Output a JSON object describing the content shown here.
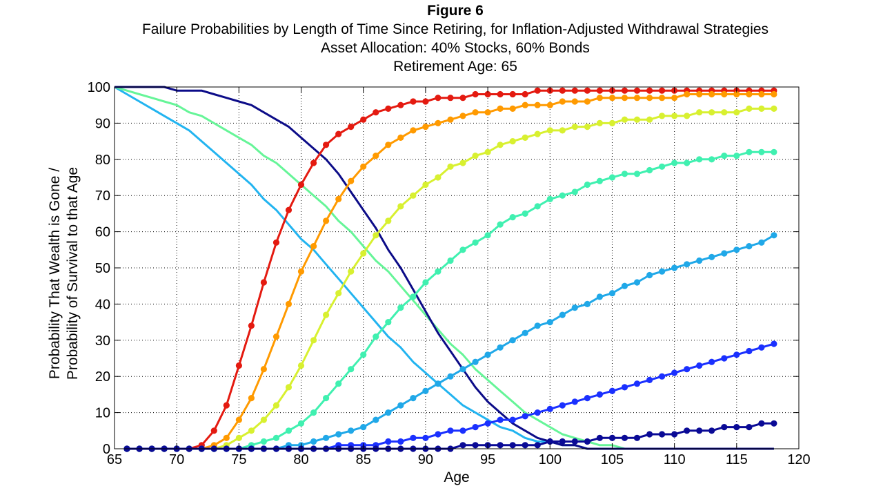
{
  "titles": {
    "figure": "Figure 6",
    "title": "Failure Probabilities by Length of Time Since Retiring, for Inflation-Adjusted Withdrawal Strategies",
    "subtitle1": "Asset Allocation: 40% Stocks, 60% Bonds",
    "subtitle2": "Retirement Age: 65"
  },
  "chart_data": {
    "type": "line",
    "xlabel": "Age",
    "ylabel_line1": "Probability That Wealth is Gone /",
    "ylabel_line2": "Probability of Survival to that Age",
    "xlim": [
      65,
      120
    ],
    "ylim": [
      0,
      100
    ],
    "xticks": [
      65,
      70,
      75,
      80,
      85,
      90,
      95,
      100,
      105,
      110,
      115,
      120
    ],
    "yticks": [
      0,
      10,
      20,
      30,
      40,
      50,
      60,
      70,
      80,
      90,
      100
    ],
    "grid": true,
    "x_start": 66,
    "x_end": 118,
    "failure_series": [
      {
        "color": "#e41a10",
        "values": [
          0,
          0,
          0,
          0,
          0,
          0,
          1,
          5,
          12,
          23,
          34,
          46,
          57,
          66,
          73,
          79,
          84,
          87,
          89,
          91,
          93,
          94,
          95,
          96,
          96,
          97,
          97,
          97,
          98,
          98,
          98,
          98,
          98,
          99,
          99,
          99,
          99,
          99,
          99,
          99,
          99,
          99,
          99,
          99,
          99,
          99,
          99,
          99,
          99,
          99,
          99,
          99,
          99
        ]
      },
      {
        "color": "#ff9a00",
        "values": [
          0,
          0,
          0,
          0,
          0,
          0,
          0,
          1,
          3,
          8,
          14,
          22,
          31,
          40,
          49,
          56,
          63,
          69,
          74,
          78,
          81,
          84,
          86,
          88,
          89,
          90,
          91,
          92,
          93,
          93,
          94,
          94,
          95,
          95,
          95,
          96,
          96,
          96,
          97,
          97,
          97,
          97,
          97,
          97,
          97,
          98,
          98,
          98,
          98,
          98,
          98,
          98,
          98
        ]
      },
      {
        "color": "#d8f030",
        "values": [
          0,
          0,
          0,
          0,
          0,
          0,
          0,
          0,
          1,
          3,
          5,
          8,
          12,
          17,
          23,
          30,
          37,
          43,
          49,
          54,
          59,
          63,
          67,
          70,
          73,
          75,
          78,
          79,
          81,
          82,
          84,
          85,
          86,
          87,
          88,
          88,
          89,
          89,
          90,
          90,
          91,
          91,
          91,
          92,
          92,
          92,
          93,
          93,
          93,
          93,
          94,
          94,
          94
        ]
      },
      {
        "color": "#40f0b0",
        "values": [
          0,
          0,
          0,
          0,
          0,
          0,
          0,
          0,
          0,
          0,
          1,
          2,
          3,
          5,
          7,
          10,
          14,
          18,
          22,
          26,
          31,
          35,
          39,
          42,
          46,
          49,
          52,
          55,
          57,
          59,
          62,
          64,
          65,
          67,
          69,
          70,
          71,
          73,
          74,
          75,
          76,
          76,
          77,
          78,
          79,
          79,
          80,
          80,
          81,
          81,
          82,
          82,
          82
        ]
      },
      {
        "color": "#20a8e8",
        "values": [
          0,
          0,
          0,
          0,
          0,
          0,
          0,
          0,
          0,
          0,
          0,
          0,
          0,
          1,
          1,
          2,
          3,
          4,
          5,
          6,
          8,
          10,
          12,
          14,
          16,
          18,
          20,
          22,
          24,
          26,
          28,
          30,
          32,
          34,
          35,
          37,
          39,
          40,
          42,
          43,
          45,
          46,
          48,
          49,
          50,
          51,
          52,
          53,
          54,
          55,
          56,
          57,
          59
        ]
      },
      {
        "color": "#1a30ff",
        "values": [
          0,
          0,
          0,
          0,
          0,
          0,
          0,
          0,
          0,
          0,
          0,
          0,
          0,
          0,
          0,
          0,
          0,
          1,
          1,
          1,
          1,
          2,
          2,
          3,
          3,
          4,
          5,
          5,
          6,
          7,
          8,
          8,
          9,
          10,
          11,
          12,
          13,
          14,
          15,
          16,
          17,
          18,
          19,
          20,
          21,
          22,
          23,
          24,
          25,
          26,
          27,
          28,
          29
        ]
      },
      {
        "color": "#0a0a96",
        "values": [
          0,
          0,
          0,
          0,
          0,
          0,
          0,
          0,
          0,
          0,
          0,
          0,
          0,
          0,
          0,
          0,
          0,
          0,
          0,
          0,
          0,
          0,
          0,
          0,
          0,
          0,
          0,
          1,
          1,
          1,
          1,
          1,
          1,
          1,
          2,
          2,
          2,
          2,
          3,
          3,
          3,
          3,
          4,
          4,
          4,
          5,
          5,
          5,
          6,
          6,
          6,
          7,
          7
        ]
      }
    ],
    "survival_series": [
      {
        "color": "#22b4f0",
        "values": [
          100,
          98,
          96,
          94,
          92,
          90,
          88,
          85,
          82,
          79,
          76,
          73,
          69,
          66,
          62,
          58,
          55,
          51,
          47,
          43,
          39,
          35,
          31,
          28,
          24,
          21,
          18,
          15,
          12,
          10,
          8,
          6,
          5,
          3,
          2,
          2,
          1,
          1,
          0,
          0,
          0,
          0,
          0,
          0,
          0,
          0,
          0,
          0,
          0,
          0,
          0,
          0,
          0,
          0
        ]
      },
      {
        "color": "#66f598",
        "values": [
          100,
          99,
          98,
          97,
          96,
          95,
          93,
          92,
          90,
          88,
          86,
          84,
          81,
          79,
          76,
          73,
          70,
          67,
          63,
          60,
          56,
          52,
          49,
          45,
          41,
          37,
          33,
          29,
          26,
          22,
          19,
          16,
          13,
          10,
          8,
          6,
          4,
          3,
          2,
          1,
          1,
          0,
          0,
          0,
          0,
          0,
          0,
          0,
          0,
          0,
          0,
          0,
          0,
          0
        ]
      },
      {
        "color": "#0c0c88",
        "values": [
          100,
          100,
          100,
          100,
          100,
          99,
          99,
          99,
          98,
          97,
          96,
          95,
          93,
          91,
          89,
          86,
          83,
          80,
          76,
          71,
          66,
          61,
          55,
          50,
          44,
          38,
          32,
          27,
          22,
          17,
          13,
          10,
          7,
          5,
          3,
          2,
          1,
          1,
          0,
          0,
          0,
          0,
          0,
          0,
          0,
          0,
          0,
          0,
          0,
          0,
          0,
          0,
          0,
          0
        ]
      }
    ],
    "survival_x_start": 65
  }
}
